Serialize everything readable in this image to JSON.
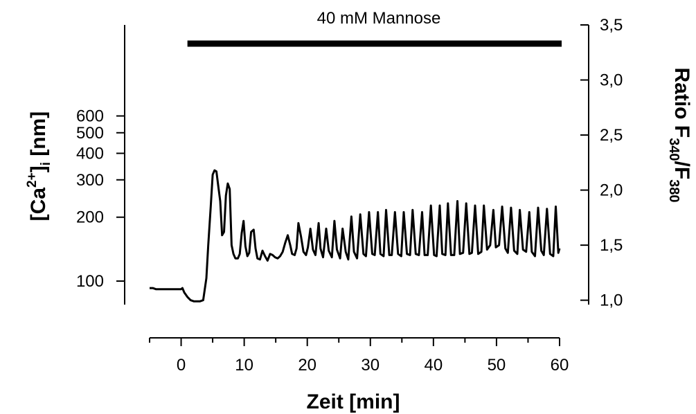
{
  "chart_data": {
    "type": "line",
    "annotation": "40 mM Mannose",
    "treatment_bar": {
      "x_start": 1,
      "x_end": 60
    },
    "xlabel": "Zeit [min]",
    "xlim": [
      -5,
      60
    ],
    "xticks": [
      0,
      10,
      20,
      30,
      40,
      50,
      60
    ],
    "ylabel_left": {
      "base": "[Ca",
      "sup": "2+",
      "mid": "]",
      "sub": "i",
      "unit": " [nm]"
    },
    "yticks_left": [
      100,
      200,
      300,
      400,
      500,
      600
    ],
    "ylabel_right": {
      "base": "Ratio F",
      "sub1": "340",
      "slash": "/F",
      "sub2": "380"
    },
    "ylim_right": [
      0.96,
      3.5
    ],
    "yticks_right": [
      "1,0",
      "1,5",
      "2,0",
      "2,5",
      "3,0",
      "3,5"
    ],
    "yticks_right_values": [
      1.0,
      1.5,
      2.0,
      2.5,
      3.0,
      3.5
    ],
    "series": [
      {
        "x": [
          -5,
          -4.5,
          -4,
          -3,
          -2,
          -1,
          0,
          0.2,
          0.5,
          1,
          1.5,
          2,
          2.5,
          3,
          3.5,
          4,
          4.3,
          4.7,
          5,
          5.3,
          5.6,
          5.9,
          6.2,
          6.5,
          6.8,
          7.1,
          7.4,
          7.7,
          8,
          8.3,
          8.6,
          9,
          9.3,
          9.6,
          9.9,
          10.2,
          10.5,
          10.8,
          11.1,
          11.5,
          11.8,
          12.1,
          12.5,
          12.9,
          13.3,
          13.7,
          14.1,
          14.5,
          14.9,
          15.3,
          15.7,
          16.1,
          16.5,
          16.9,
          17.3,
          17.6,
          18,
          18.3,
          18.6,
          19,
          19.4,
          19.8,
          20.1,
          20.5,
          20.9,
          21.3,
          21.8,
          22.1,
          22.5,
          23,
          23.4,
          23.9,
          24.3,
          24.7,
          25.2,
          25.6,
          26.1,
          26.5,
          27,
          27.4,
          27.9,
          28.4,
          28.9,
          29.3,
          29.8,
          30.3,
          30.7,
          31.2,
          31.6,
          32.1,
          32.5,
          33,
          33.4,
          33.9,
          34.4,
          34.9,
          35.3,
          35.8,
          36.3,
          36.7,
          37.2,
          37.7,
          38.2,
          38.6,
          39.1,
          39.6,
          40.1,
          40.5,
          41,
          41.4,
          41.9,
          42.3,
          42.8,
          43.3,
          43.8,
          44.2,
          44.7,
          45.2,
          45.7,
          46.1,
          46.6,
          47.1,
          47.6,
          48,
          48.5,
          49,
          49.5,
          49.9,
          50.4,
          50.9,
          51.4,
          51.8,
          52.3,
          52.8,
          53.3,
          53.7,
          54.2,
          54.7,
          55.2,
          55.6,
          56.1,
          56.6,
          57.1,
          57.5,
          58,
          58.5,
          59,
          59.4,
          59.8,
          60
        ],
        "y": [
          1.11,
          1.11,
          1.1,
          1.1,
          1.1,
          1.1,
          1.1,
          1.11,
          1.07,
          1.03,
          1.0,
          0.99,
          0.99,
          0.99,
          1.0,
          1.2,
          1.5,
          1.85,
          2.14,
          2.18,
          2.17,
          2.03,
          1.9,
          1.59,
          1.62,
          1.95,
          2.06,
          2.01,
          1.5,
          1.42,
          1.38,
          1.38,
          1.42,
          1.61,
          1.72,
          1.49,
          1.4,
          1.43,
          1.62,
          1.64,
          1.47,
          1.38,
          1.37,
          1.45,
          1.4,
          1.36,
          1.42,
          1.41,
          1.39,
          1.38,
          1.4,
          1.44,
          1.52,
          1.59,
          1.5,
          1.42,
          1.41,
          1.47,
          1.7,
          1.58,
          1.44,
          1.41,
          1.48,
          1.65,
          1.46,
          1.41,
          1.7,
          1.47,
          1.39,
          1.65,
          1.45,
          1.39,
          1.72,
          1.46,
          1.38,
          1.65,
          1.44,
          1.37,
          1.76,
          1.44,
          1.38,
          1.78,
          1.42,
          1.4,
          1.8,
          1.42,
          1.41,
          1.8,
          1.42,
          1.4,
          1.82,
          1.41,
          1.41,
          1.8,
          1.42,
          1.4,
          1.8,
          1.42,
          1.41,
          1.82,
          1.42,
          1.41,
          1.8,
          1.41,
          1.41,
          1.86,
          1.41,
          1.4,
          1.86,
          1.42,
          1.41,
          1.88,
          1.41,
          1.41,
          1.9,
          1.42,
          1.43,
          1.88,
          1.42,
          1.43,
          1.86,
          1.42,
          1.44,
          1.86,
          1.46,
          1.5,
          1.82,
          1.48,
          1.5,
          1.85,
          1.47,
          1.43,
          1.84,
          1.45,
          1.42,
          1.82,
          1.46,
          1.44,
          1.8,
          1.44,
          1.4,
          1.84,
          1.45,
          1.41,
          1.83,
          1.42,
          1.4,
          1.85,
          1.43,
          1.47
        ]
      }
    ]
  }
}
